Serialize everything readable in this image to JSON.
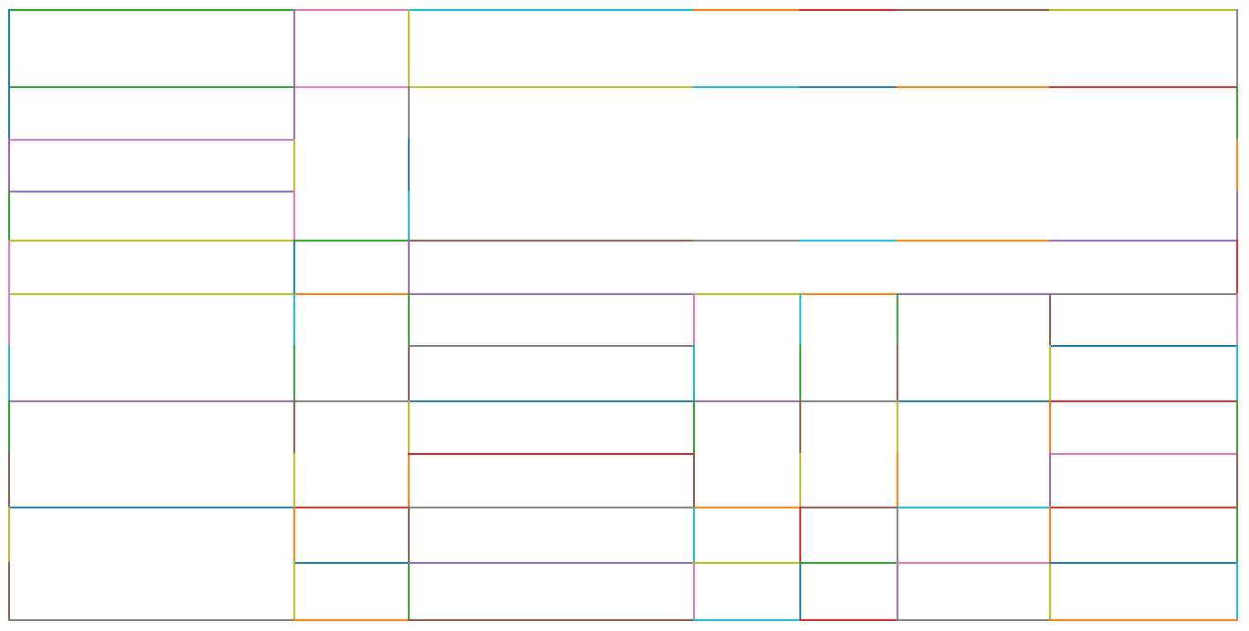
{
  "diagram": {
    "type": "rectangle-partition",
    "text": "",
    "colors": {
      "blue": "#1f77b4",
      "orange": "#ff7f0e",
      "green": "#2ca02c",
      "red": "#d62728",
      "purple": "#9467bd",
      "brown": "#8c564b",
      "pink": "#e377c2",
      "gray": "#7f7f7f",
      "olive": "#bcbd22",
      "cyan": "#17becf"
    },
    "background": "#ffffff"
  }
}
